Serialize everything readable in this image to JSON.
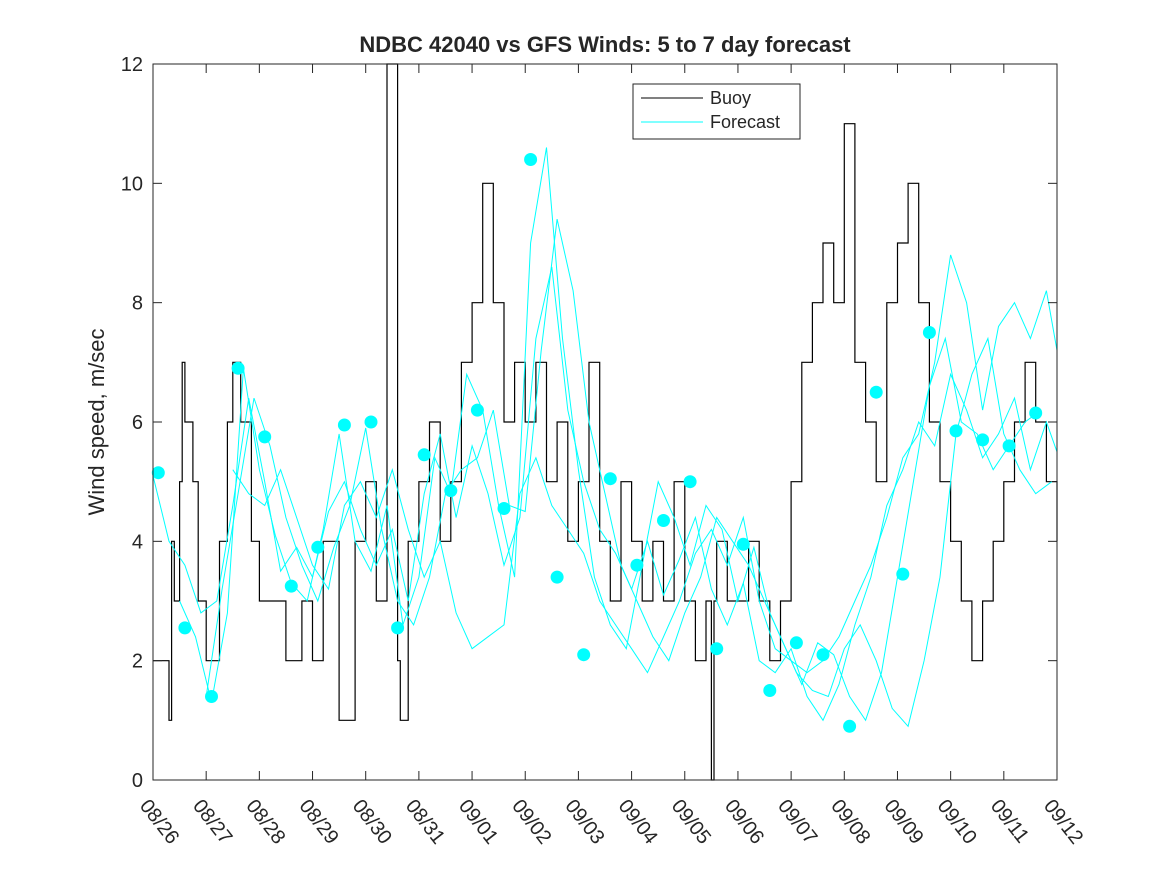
{
  "chart_data": {
    "type": "line",
    "title": "NDBC 42040 vs GFS Winds: 5 to 7 day forecast",
    "xlabel": "",
    "ylabel": "Wind speed, m/sec",
    "xlim": [
      0,
      17
    ],
    "ylim": [
      0,
      12
    ],
    "x_tick_values": [
      0,
      1,
      2,
      3,
      4,
      5,
      6,
      7,
      8,
      9,
      10,
      11,
      12,
      13,
      14,
      15,
      16,
      17
    ],
    "x_tick_labels": [
      "08/26",
      "08/27",
      "08/28",
      "08/29",
      "08/30",
      "08/31",
      "09/01",
      "09/02",
      "09/03",
      "09/04",
      "09/05",
      "09/06",
      "09/07",
      "09/08",
      "09/09",
      "09/10",
      "09/11",
      "09/12"
    ],
    "y_tick_values": [
      0,
      2,
      4,
      6,
      8,
      10,
      12
    ],
    "y_tick_labels": [
      "0",
      "2",
      "4",
      "6",
      "8",
      "10",
      "12"
    ],
    "grid": false,
    "legend": {
      "position": "top-center",
      "entries": [
        "Buoy",
        "Forecast"
      ]
    },
    "colors": {
      "buoy": "#000000",
      "forecast": "#00ffff",
      "axis": "#262626"
    },
    "series": [
      {
        "name": "Buoy",
        "style": "stairs",
        "x": [
          0.0,
          0.2,
          0.3,
          0.35,
          0.4,
          0.5,
          0.55,
          0.6,
          0.75,
          0.85,
          1.0,
          1.25,
          1.4,
          1.5,
          1.65,
          1.85,
          2.0,
          2.2,
          2.5,
          2.8,
          3.0,
          3.2,
          3.5,
          3.8,
          4.0,
          4.2,
          4.4,
          4.6,
          4.65,
          4.8,
          5.0,
          5.2,
          5.4,
          5.6,
          5.8,
          6.0,
          6.2,
          6.4,
          6.6,
          6.8,
          7.0,
          7.2,
          7.4,
          7.6,
          7.8,
          8.0,
          8.2,
          8.4,
          8.6,
          8.8,
          9.0,
          9.2,
          9.4,
          9.6,
          9.8,
          10.0,
          10.2,
          10.4,
          10.5,
          10.55,
          10.6,
          10.8,
          11.0,
          11.2,
          11.4,
          11.6,
          11.8,
          12.0,
          12.2,
          12.4,
          12.6,
          12.8,
          13.0,
          13.2,
          13.4,
          13.6,
          13.8,
          14.0,
          14.2,
          14.4,
          14.6,
          14.8,
          15.0,
          15.2,
          15.4,
          15.6,
          15.8,
          16.0,
          16.2,
          16.4,
          16.6,
          16.8,
          17.0
        ],
        "values": [
          2,
          2,
          1,
          4,
          3,
          5,
          7,
          6,
          5,
          3,
          2,
          4,
          6,
          7,
          6,
          4,
          3,
          3,
          2,
          3,
          2,
          4,
          1,
          4,
          5,
          3,
          12,
          2,
          1,
          4,
          5,
          6,
          4,
          5,
          7,
          8,
          10,
          8,
          6,
          7,
          6,
          7,
          5,
          6,
          4,
          5,
          7,
          4,
          3,
          5,
          4,
          3,
          4,
          3,
          5,
          3,
          2,
          3,
          0,
          3,
          4,
          3,
          3,
          4,
          3,
          2,
          3,
          5,
          7,
          8,
          9,
          8,
          11,
          7,
          6,
          5,
          8,
          9,
          10,
          8,
          6,
          5,
          4,
          3,
          2,
          3,
          4,
          5,
          6,
          7,
          6,
          5,
          4
        ]
      },
      {
        "name": "Forecast",
        "style": "lines",
        "runs": [
          {
            "x": [
              0.0,
              0.3,
              0.6,
              0.9,
              1.2,
              1.5,
              1.8,
              2.1,
              2.4,
              2.7,
              3.0,
              3.3,
              3.6,
              3.9,
              4.2,
              4.5,
              4.8,
              5.1,
              5.4,
              5.7,
              6.0,
              6.3,
              6.6,
              6.9,
              7.2,
              7.5,
              7.8,
              8.1,
              8.4,
              8.7,
              9.0,
              9.3,
              9.6,
              9.9,
              10.2,
              10.5,
              10.8,
              11.1,
              11.4,
              11.7,
              12.0,
              12.3,
              12.6,
              12.9,
              13.2,
              13.5,
              13.8,
              14.1,
              14.4,
              14.7,
              15.0,
              15.3,
              15.6,
              15.9,
              16.2,
              16.5,
              16.8,
              17.0
            ],
            "y": [
              5.1,
              4.0,
              3.6,
              2.8,
              3.0,
              4.6,
              6.4,
              5.0,
              3.5,
              3.9,
              3.4,
              4.5,
              5.0,
              4.2,
              3.6,
              4.2,
              3.0,
              4.8,
              5.8,
              4.4,
              5.6,
              4.8,
              3.6,
              4.4,
              7.4,
              8.6,
              6.2,
              5.0,
              4.2,
              3.8,
              3.2,
              4.0,
              3.1,
              3.7,
              4.4,
              3.2,
              2.6,
              3.3,
              2.0,
              1.8,
              2.2,
              1.4,
              1.0,
              1.6,
              2.6,
              3.4,
              4.6,
              5.2,
              6.0,
              5.6,
              6.8,
              6.2,
              5.4,
              5.8,
              6.4,
              5.2,
              6.0,
              5.5
            ]
          },
          {
            "x": [
              0.5,
              0.8,
              1.1,
              1.4,
              1.7,
              2.0,
              2.3,
              2.6,
              2.9,
              3.2,
              3.5,
              3.8,
              4.1,
              4.4,
              4.7,
              5.0,
              5.3,
              5.6,
              5.9,
              6.2,
              6.5,
              6.8,
              7.1,
              7.4,
              7.7,
              8.0,
              8.3,
              8.6,
              8.9,
              9.2,
              9.5,
              9.8,
              10.1,
              10.4,
              10.7,
              11.0,
              11.3,
              11.6,
              11.9,
              12.2,
              12.5,
              12.8,
              13.1,
              13.4,
              13.7,
              14.0,
              14.3,
              14.6,
              14.9,
              15.2,
              15.5,
              15.8,
              16.1,
              16.4,
              16.7
            ],
            "y": [
              3.0,
              2.4,
              1.3,
              2.8,
              6.9,
              5.2,
              4.1,
              3.3,
              3.0,
              4.2,
              5.8,
              4.0,
              3.5,
              4.6,
              2.6,
              3.4,
              5.4,
              4.8,
              6.8,
              6.2,
              4.6,
              3.4,
              9.0,
              10.6,
              7.4,
              5.2,
              3.4,
              2.6,
              2.2,
              3.6,
              5.0,
              4.4,
              3.6,
              4.6,
              4.2,
              3.0,
              3.9,
              2.8,
              2.2,
              1.6,
              2.3,
              2.1,
              1.4,
              1.0,
              1.8,
              3.4,
              5.0,
              6.6,
              7.4,
              6.0,
              5.8,
              5.2,
              5.6,
              6.0,
              6.2
            ]
          },
          {
            "x": [
              1.0,
              1.3,
              1.6,
              1.9,
              2.2,
              2.5,
              2.8,
              3.1,
              3.4,
              3.7,
              4.0,
              4.3,
              4.6,
              4.9,
              5.2,
              5.5,
              5.8,
              6.1,
              6.4,
              6.7,
              7.0,
              7.3,
              7.6,
              7.9,
              8.2,
              8.5,
              8.8,
              9.1,
              9.4,
              9.7,
              10.0,
              10.3,
              10.6,
              10.9,
              11.2,
              11.5,
              11.8,
              12.1,
              12.4,
              12.7,
              13.0,
              13.3,
              13.6,
              13.9,
              14.2,
              14.5,
              14.8,
              15.1,
              15.4,
              15.7,
              16.0,
              16.3,
              16.6,
              16.9
            ],
            "y": [
              1.4,
              3.2,
              4.8,
              6.4,
              5.6,
              4.4,
              3.6,
              3.0,
              3.9,
              4.6,
              5.9,
              4.2,
              3.0,
              2.6,
              3.4,
              4.8,
              5.2,
              5.4,
              6.2,
              4.6,
              4.5,
              7.2,
              9.4,
              8.2,
              6.0,
              4.8,
              3.6,
              3.0,
              2.4,
              2.0,
              2.8,
              3.4,
              4.4,
              4.0,
              3.6,
              3.0,
              2.4,
              1.8,
              1.5,
              1.4,
              2.2,
              2.6,
              2.0,
              1.2,
              0.9,
              2.0,
              3.4,
              5.8,
              6.8,
              7.4,
              5.8,
              5.2,
              4.8,
              5.0
            ]
          },
          {
            "x": [
              1.5,
              1.8,
              2.1,
              2.4,
              2.7,
              3.0,
              3.3,
              3.6,
              3.9,
              4.2,
              4.5,
              4.8,
              5.1,
              5.4,
              5.7,
              6.0,
              6.3,
              6.6,
              6.9,
              7.2,
              7.5,
              7.8,
              8.1,
              8.4,
              8.7,
              9.0,
              9.3,
              9.6,
              9.9,
              10.2,
              10.5,
              10.8,
              11.1,
              11.4,
              11.7,
              12.0,
              12.3,
              12.6,
              12.9,
              13.2,
              13.5,
              13.8,
              14.1,
              14.4,
              14.7,
              15.0,
              15.3,
              15.6,
              15.9,
              16.2,
              16.5,
              16.8,
              17.0
            ],
            "y": [
              5.2,
              4.8,
              4.6,
              5.2,
              4.4,
              3.6,
              3.2,
              4.6,
              5.0,
              4.4,
              5.2,
              4.2,
              3.4,
              4.0,
              2.8,
              2.2,
              2.4,
              2.6,
              4.8,
              5.4,
              4.6,
              4.2,
              3.8,
              3.0,
              2.6,
              2.2,
              1.8,
              2.4,
              3.0,
              3.8,
              4.2,
              3.6,
              4.4,
              3.0,
              2.2,
              2.0,
              1.8,
              2.0,
              2.4,
              3.0,
              3.6,
              4.4,
              5.4,
              5.8,
              7.0,
              8.8,
              8.0,
              6.2,
              7.6,
              8.0,
              7.4,
              8.2,
              7.2
            ]
          }
        ]
      }
    ],
    "markers": {
      "name": "Forecast daily points",
      "x": [
        0.1,
        0.6,
        1.1,
        1.6,
        2.1,
        2.6,
        3.1,
        3.6,
        4.1,
        4.6,
        5.1,
        5.6,
        6.1,
        6.6,
        7.1,
        7.6,
        8.1,
        8.6,
        9.1,
        9.6,
        10.1,
        10.6,
        11.1,
        11.6,
        12.1,
        12.6,
        13.1,
        13.6,
        14.1,
        14.6,
        15.1,
        15.6,
        16.1,
        16.6
      ],
      "y": [
        5.15,
        2.55,
        1.4,
        6.9,
        5.75,
        3.25,
        3.9,
        5.95,
        6.0,
        2.55,
        5.45,
        4.85,
        6.2,
        4.55,
        10.4,
        3.4,
        2.1,
        5.05,
        3.6,
        4.35,
        5.0,
        2.2,
        3.95,
        1.5,
        2.3,
        2.1,
        0.9,
        6.5,
        3.45,
        7.5,
        5.85,
        5.7,
        5.6,
        6.15
      ]
    }
  }
}
